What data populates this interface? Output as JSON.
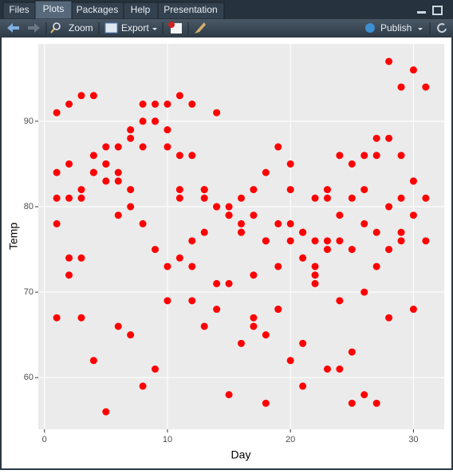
{
  "tabs": [
    "Files",
    "Plots",
    "Packages",
    "Help",
    "Presentation"
  ],
  "toolbar": {
    "zoom": "Zoom",
    "export": "Export",
    "publish": "Publish"
  },
  "chart_data": {
    "type": "scatter",
    "x_label": "Day",
    "y_label": "Temp",
    "color": "#ff0000",
    "grid": true,
    "xlim": [
      -0.5,
      32.5
    ],
    "xticks": [
      0,
      10,
      20,
      30
    ],
    "ylim": [
      53.95,
      99.05
    ],
    "yticks": [
      60,
      70,
      80,
      90
    ],
    "x": [
      1,
      2,
      3,
      4,
      5,
      6,
      7,
      8,
      9,
      10,
      11,
      12,
      13,
      14,
      15,
      16,
      17,
      18,
      19,
      20,
      21,
      22,
      23,
      24,
      25,
      26,
      27,
      28,
      29,
      30,
      31,
      1,
      2,
      3,
      4,
      5,
      6,
      7,
      8,
      9,
      10,
      11,
      12,
      13,
      14,
      15,
      16,
      17,
      18,
      19,
      20,
      21,
      22,
      23,
      24,
      25,
      26,
      27,
      28,
      29,
      30,
      1,
      2,
      3,
      4,
      5,
      6,
      7,
      8,
      9,
      10,
      11,
      12,
      13,
      14,
      15,
      16,
      17,
      18,
      19,
      20,
      21,
      22,
      23,
      24,
      25,
      26,
      27,
      28,
      29,
      30,
      31,
      1,
      2,
      3,
      4,
      5,
      6,
      7,
      8,
      9,
      10,
      11,
      12,
      13,
      14,
      15,
      16,
      17,
      18,
      19,
      20,
      21,
      22,
      23,
      24,
      25,
      26,
      27,
      28,
      29,
      30,
      31,
      1,
      2,
      3,
      4,
      5,
      6,
      7,
      8,
      9,
      10,
      11,
      12,
      13,
      14,
      15,
      16,
      17,
      18,
      19,
      20,
      21,
      22,
      23,
      24,
      25,
      26,
      27,
      28,
      29,
      30
    ],
    "values": [
      67,
      72,
      74,
      62,
      56,
      66,
      65,
      59,
      61,
      69,
      74,
      69,
      66,
      68,
      58,
      64,
      66,
      57,
      68,
      62,
      59,
      73,
      61,
      61,
      57,
      58,
      57,
      67,
      81,
      79,
      76,
      78,
      74,
      67,
      84,
      85,
      79,
      82,
      87,
      90,
      87,
      93,
      92,
      82,
      80,
      79,
      77,
      72,
      65,
      73,
      76,
      77,
      76,
      76,
      76,
      75,
      78,
      73,
      80,
      77,
      83,
      84,
      85,
      81,
      84,
      83,
      83,
      88,
      92,
      92,
      89,
      82,
      73,
      81,
      91,
      80,
      81,
      82,
      84,
      87,
      85,
      74,
      81,
      82,
      86,
      85,
      82,
      86,
      88,
      86,
      83,
      81,
      81,
      81,
      82,
      86,
      85,
      87,
      89,
      90,
      90,
      92,
      86,
      86,
      82,
      80,
      79,
      77,
      79,
      76,
      78,
      78,
      77,
      72,
      75,
      79,
      81,
      86,
      88,
      97,
      94,
      96,
      94,
      91,
      92,
      93,
      93,
      87,
      84,
      80,
      78,
      75,
      73,
      81,
      76,
      77,
      71,
      71,
      78,
      67,
      76,
      68,
      82,
      64,
      71,
      81,
      69,
      63,
      70,
      77,
      75,
      76,
      68
    ]
  }
}
